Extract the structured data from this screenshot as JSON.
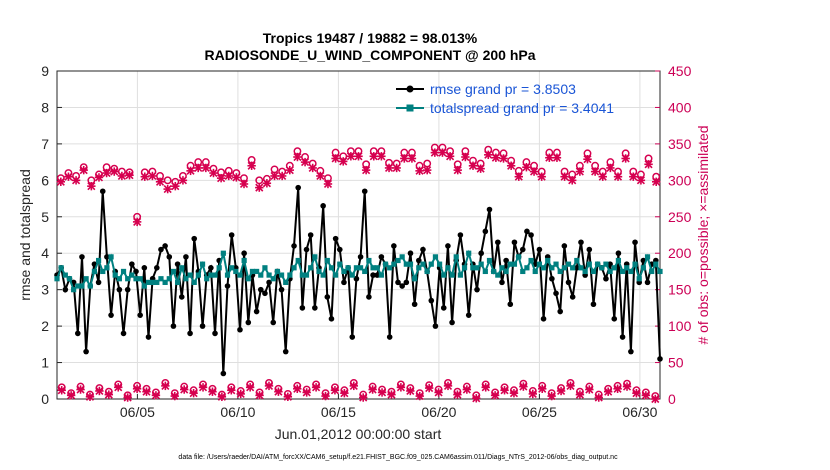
{
  "chart_data": {
    "type": "line",
    "title": "Tropics 19487 / 19882 = 98.013%",
    "subtitle": "RADIOSONDE_U_WIND_COMPONENT @ 200 hPa",
    "xlabel": "Jun.01,2012 00:00:00 start",
    "ylabel_left": "rmse and totalspread",
    "ylabel_right": "# of obs: o=possible; ×=assimilated",
    "ylim_left": [
      0,
      9
    ],
    "ylim_right": [
      0,
      450
    ],
    "xlim_days": [
      1,
      31
    ],
    "y_ticks_left": [
      "0",
      "1",
      "2",
      "3",
      "4",
      "5",
      "6",
      "7",
      "8",
      "9"
    ],
    "y_ticks_right": [
      "0",
      "50",
      "100",
      "150",
      "200",
      "250",
      "300",
      "350",
      "400",
      "450"
    ],
    "x_ticks": [
      {
        "day": 5,
        "label": "06/05"
      },
      {
        "day": 10,
        "label": "06/10"
      },
      {
        "day": 15,
        "label": "06/15"
      },
      {
        "day": 20,
        "label": "06/20"
      },
      {
        "day": 25,
        "label": "06/25"
      },
      {
        "day": 30,
        "label": "06/30"
      }
    ],
    "legend": [
      {
        "label": "rmse grand pr = 3.8503",
        "color": "#000000"
      },
      {
        "label": "totalspread grand pr = 3.4041",
        "color": "#008080"
      }
    ],
    "series": [
      {
        "name": "rmse",
        "color": "#000000",
        "values": [
          3.4,
          3.6,
          3.0,
          3.3,
          3.2,
          1.8,
          3.9,
          1.3,
          3.1,
          3.7,
          3.2,
          5.7,
          3.9,
          2.3,
          3.5,
          3.0,
          1.8,
          3.0,
          3.7,
          3.5,
          2.3,
          3.6,
          1.7,
          3.3,
          3.6,
          4.1,
          4.2,
          3.9,
          2.0,
          3.7,
          2.8,
          3.9,
          1.8,
          4.4,
          3.5,
          2.0,
          3.4,
          3.6,
          1.8,
          3.8,
          0.7,
          3.1,
          4.5,
          3.6,
          1.9,
          4.0,
          2.1,
          3.4,
          2.4,
          3.0,
          2.9,
          3.2,
          2.1,
          3.5,
          3.0,
          1.3,
          3.3,
          4.2,
          5.8,
          2.5,
          4.1,
          4.5,
          2.5,
          3.6,
          5.3,
          2.8,
          2.2,
          4.4,
          4.1,
          3.2,
          3.6,
          1.7,
          3.3,
          3.9,
          5.7,
          2.8,
          3.4,
          3.4,
          3.9,
          3.7,
          1.7,
          4.2,
          3.2,
          3.1,
          3.2,
          4.0,
          2.6,
          3.8,
          4.1,
          3.5,
          2.7,
          2.0,
          3.6,
          2.5,
          4.2,
          2.1,
          3.8,
          4.5,
          3.7,
          2.3,
          3.7,
          3.0,
          4.0,
          4.6,
          5.2,
          3.5,
          4.3,
          3.2,
          3.8,
          2.6,
          4.3,
          3.9,
          4.1,
          4.6,
          4.5,
          3.7,
          4.1,
          2.2,
          3.9,
          3.3,
          2.9,
          2.4,
          4.2,
          3.2,
          2.8,
          3.6,
          4.3,
          3.4,
          4.1,
          2.6,
          3.7,
          3.6,
          3.3,
          3.7,
          2.2,
          4.0,
          1.7,
          3.7,
          1.3,
          4.3,
          3.2,
          3.8,
          3.2,
          3.7,
          3.8,
          1.1
        ]
      },
      {
        "name": "totalspread",
        "color": "#008080",
        "values": [
          3.3,
          3.6,
          3.4,
          3.3,
          3.0,
          3.1,
          3.1,
          3.3,
          3.1,
          3.5,
          3.8,
          3.5,
          3.6,
          3.9,
          3.4,
          3.3,
          3.5,
          3.3,
          3.4,
          3.3,
          3.3,
          3.1,
          3.2,
          3.2,
          3.2,
          3.3,
          3.2,
          3.3,
          3.5,
          3.2,
          3.6,
          3.3,
          3.4,
          3.2,
          3.4,
          3.7,
          3.3,
          3.4,
          3.4,
          3.6,
          4.0,
          3.4,
          3.6,
          3.5,
          3.4,
          3.8,
          3.3,
          3.5,
          3.5,
          3.4,
          3.6,
          3.4,
          3.3,
          3.5,
          3.4,
          3.2,
          3.4,
          3.6,
          3.8,
          3.4,
          3.4,
          3.6,
          3.9,
          3.5,
          3.4,
          3.8,
          3.6,
          3.4,
          3.7,
          3.5,
          3.6,
          3.4,
          3.6,
          3.6,
          3.5,
          3.8,
          3.6,
          3.6,
          3.4,
          3.7,
          3.6,
          3.7,
          3.8,
          3.9,
          3.7,
          3.7,
          3.3,
          3.6,
          3.7,
          3.5,
          3.7,
          3.9,
          3.7,
          3.4,
          3.6,
          3.4,
          3.9,
          3.4,
          3.6,
          4.0,
          3.6,
          3.6,
          3.7,
          3.5,
          3.8,
          3.5,
          3.4,
          3.6,
          3.5,
          3.7,
          3.7,
          3.9,
          3.5,
          3.6,
          3.8,
          3.5,
          3.7,
          3.6,
          3.8,
          3.6,
          3.7,
          3.5,
          3.6,
          3.7,
          3.6,
          3.8,
          3.6,
          3.5,
          3.7,
          3.5,
          3.7,
          3.6,
          3.7,
          3.5,
          3.6,
          3.8,
          3.5,
          3.6,
          3.5,
          3.7,
          3.3,
          3.6,
          3.9,
          3.5,
          3.7,
          3.5
        ]
      },
      {
        "name": "possible",
        "color": "#d6004f",
        "axis": "right",
        "values": [
          303,
          310,
          306,
          318,
          300,
          308,
          318,
          316,
          312,
          311,
          250,
          311,
          312,
          306,
          300,
          298,
          306,
          320,
          325,
          325,
          316,
          311,
          313,
          310,
          303,
          328,
          300,
          302,
          315,
          312,
          320,
          340,
          332,
          323,
          313,
          303,
          338,
          333,
          340,
          340,
          322,
          340,
          340,
          324,
          323,
          338,
          338,
          320,
          323,
          345,
          345,
          340,
          322,
          340,
          327,
          323,
          342,
          338,
          337,
          327,
          313,
          325,
          320,
          312,
          338,
          338,
          312,
          308,
          320,
          337,
          320,
          312,
          325,
          312,
          337,
          312,
          308,
          330,
          305
        ]
      },
      {
        "name": "assimilated",
        "color": "#d6004f",
        "axis": "right",
        "values": [
          298,
          305,
          300,
          314,
          292,
          304,
          310,
          312,
          306,
          307,
          243,
          305,
          306,
          298,
          288,
          292,
          300,
          313,
          317,
          317,
          310,
          303,
          306,
          304,
          295,
          320,
          290,
          296,
          306,
          306,
          314,
          332,
          325,
          317,
          306,
          295,
          330,
          326,
          333,
          333,
          314,
          333,
          333,
          317,
          317,
          330,
          330,
          313,
          314,
          338,
          338,
          333,
          314,
          332,
          320,
          316,
          335,
          331,
          330,
          320,
          305,
          318,
          312,
          305,
          331,
          331,
          305,
          300,
          312,
          329,
          312,
          305,
          317,
          305,
          330,
          305,
          300,
          322,
          298
        ]
      },
      {
        "name": "possible_low",
        "color": "#d6004f",
        "axis": "right",
        "values": [
          16,
          8,
          17,
          6,
          15,
          10,
          20,
          5,
          18,
          14,
          9,
          22,
          8,
          17,
          12,
          20,
          14,
          6,
          16,
          11,
          20,
          9,
          22,
          14,
          7,
          18,
          13,
          20,
          8,
          16,
          12,
          22,
          6,
          17,
          13,
          10,
          20,
          15,
          8,
          19,
          13,
          22,
          10,
          17,
          5,
          20,
          9,
          16,
          12,
          21,
          11,
          18,
          8,
          15,
          22,
          10,
          17,
          6,
          14,
          18,
          21,
          12,
          9,
          4
        ]
      },
      {
        "name": "assimilated_low",
        "color": "#d6004f",
        "axis": "right",
        "values": [
          12,
          5,
          13,
          3,
          11,
          6,
          16,
          2,
          14,
          10,
          5,
          18,
          4,
          13,
          8,
          16,
          10,
          3,
          12,
          7,
          16,
          5,
          18,
          10,
          3,
          14,
          9,
          16,
          4,
          12,
          8,
          18,
          2,
          13,
          9,
          6,
          16,
          11,
          4,
          15,
          9,
          18,
          6,
          13,
          1,
          16,
          5,
          12,
          8,
          17,
          7,
          14,
          4,
          11,
          18,
          6,
          13,
          2,
          10,
          14,
          17,
          8,
          5,
          0
        ]
      }
    ]
  },
  "footnote": "data file: /Users/raeder/DAI/ATM_forcXX/CAM6_setup/f.e21.FHIST_BGC.f09_025.CAM6assim.011/Diags_NTrS_2012-06/obs_diag_output.nc"
}
